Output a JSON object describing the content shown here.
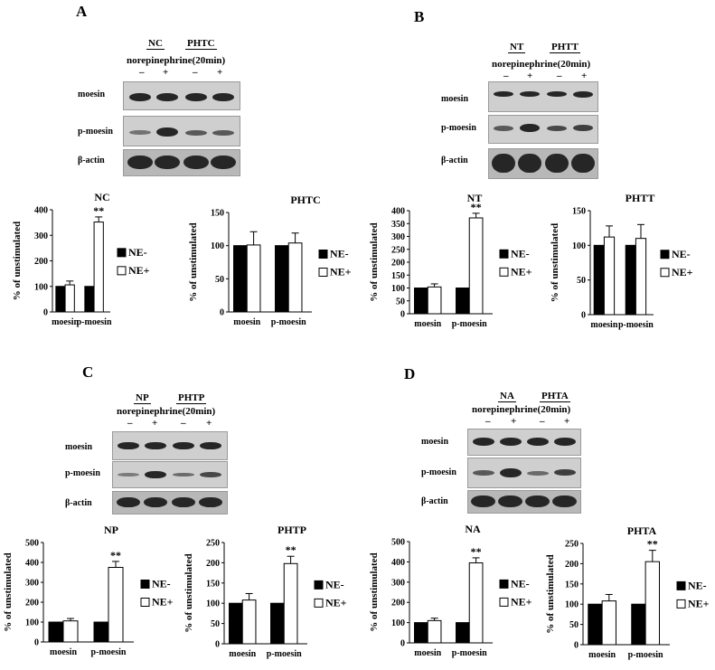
{
  "panels": {
    "A": {
      "letter": "A",
      "g1": "NC",
      "g2": "PHTC",
      "treatment": "norepinephrine(20min)",
      "signs": [
        "–",
        "+",
        "–",
        "+"
      ],
      "rows": [
        "moesin",
        "p-moesin",
        "β-actin"
      ]
    },
    "B": {
      "letter": "B",
      "g1": "NT",
      "g2": "PHTT",
      "treatment": "norepinephrine(20min)",
      "signs": [
        "–",
        "+",
        "–",
        "+"
      ],
      "rows": [
        "moesin",
        "p-moesin",
        "β-actin"
      ]
    },
    "C": {
      "letter": "C",
      "g1": "NP",
      "g2": "PHTP",
      "treatment": "norepinephrine(20min)",
      "signs": [
        "–",
        "+",
        "–",
        "+"
      ],
      "rows": [
        "moesin",
        "p-moesin",
        "β-actin"
      ]
    },
    "D": {
      "letter": "D",
      "g1": "NA",
      "g2": "PHTA",
      "treatment": "norepinephrine(20min)",
      "signs": [
        "–",
        "+",
        "–",
        "+"
      ],
      "rows": [
        "moesin",
        "p-moesin",
        "β-actin"
      ]
    }
  },
  "chart_data": [
    {
      "type": "bar",
      "title": "NC",
      "ylabel": "% of unstimulated",
      "ylim": [
        0,
        400
      ],
      "yticks": [
        0,
        100,
        200,
        300,
        400
      ],
      "categories": [
        "moesin",
        "p-moesin"
      ],
      "series": [
        {
          "name": "NE-",
          "color": "#000000",
          "values": [
            100,
            100
          ],
          "errors": [
            0,
            0
          ]
        },
        {
          "name": "NE+",
          "color": "#ffffff",
          "values": [
            106,
            352
          ],
          "errors": [
            15,
            20
          ]
        }
      ],
      "annotations": [
        "",
        "**"
      ],
      "legend": "right"
    },
    {
      "type": "bar",
      "title": "PHTC",
      "ylabel": "% of unstimulated",
      "ylim": [
        0,
        150
      ],
      "yticks": [
        0,
        50,
        100,
        150
      ],
      "categories": [
        "moesin",
        "p-moesin"
      ],
      "series": [
        {
          "name": "NE-",
          "color": "#000000",
          "values": [
            100,
            100
          ],
          "errors": [
            0,
            0
          ]
        },
        {
          "name": "NE+",
          "color": "#ffffff",
          "values": [
            101,
            104
          ],
          "errors": [
            20,
            15
          ]
        }
      ],
      "annotations": [
        "",
        ""
      ],
      "legend": "right"
    },
    {
      "type": "bar",
      "title": "NT",
      "ylabel": "% of unstimulated",
      "ylim": [
        0,
        400
      ],
      "yticks": [
        0,
        50,
        100,
        150,
        200,
        250,
        300,
        350,
        400
      ],
      "categories": [
        "moesin",
        "p-moesin"
      ],
      "series": [
        {
          "name": "NE-",
          "color": "#000000",
          "values": [
            100,
            100
          ],
          "errors": [
            0,
            0
          ]
        },
        {
          "name": "NE+",
          "color": "#ffffff",
          "values": [
            104,
            372
          ],
          "errors": [
            12,
            18
          ]
        }
      ],
      "annotations": [
        "",
        "**"
      ],
      "legend": "right"
    },
    {
      "type": "bar",
      "title": "PHTT",
      "ylabel": "% of unstimulated",
      "ylim": [
        0,
        150
      ],
      "yticks": [
        0,
        50,
        100,
        150
      ],
      "categories": [
        "moesin",
        "p-moesin"
      ],
      "series": [
        {
          "name": "NE-",
          "color": "#000000",
          "values": [
            100,
            100
          ],
          "errors": [
            0,
            0
          ]
        },
        {
          "name": "NE+",
          "color": "#ffffff",
          "values": [
            112,
            110
          ],
          "errors": [
            16,
            20
          ]
        }
      ],
      "annotations": [
        "",
        ""
      ],
      "legend": "right"
    },
    {
      "type": "bar",
      "title": "NP",
      "ylabel": "% of unstimulated",
      "ylim": [
        0,
        500
      ],
      "yticks": [
        0,
        100,
        200,
        300,
        400,
        500
      ],
      "categories": [
        "moesin",
        "p-moesin"
      ],
      "series": [
        {
          "name": "NE-",
          "color": "#000000",
          "values": [
            100,
            100
          ],
          "errors": [
            0,
            0
          ]
        },
        {
          "name": "NE+",
          "color": "#ffffff",
          "values": [
            106,
            375
          ],
          "errors": [
            12,
            30
          ]
        }
      ],
      "annotations": [
        "",
        "**"
      ],
      "legend": "right"
    },
    {
      "type": "bar",
      "title": "PHTP",
      "ylabel": "% of unstimulated",
      "ylim": [
        0,
        250
      ],
      "yticks": [
        0,
        50,
        100,
        150,
        200,
        250
      ],
      "categories": [
        "moesin",
        "p-moesin"
      ],
      "series": [
        {
          "name": "NE-",
          "color": "#000000",
          "values": [
            100,
            100
          ],
          "errors": [
            0,
            0
          ]
        },
        {
          "name": "NE+",
          "color": "#ffffff",
          "values": [
            108,
            198
          ],
          "errors": [
            16,
            18
          ]
        }
      ],
      "annotations": [
        "",
        "**"
      ],
      "legend": "right"
    },
    {
      "type": "bar",
      "title": "NA",
      "ylabel": "% of unstimulated",
      "ylim": [
        0,
        500
      ],
      "yticks": [
        0,
        100,
        200,
        300,
        400,
        500
      ],
      "categories": [
        "moesin",
        "p-moesin"
      ],
      "series": [
        {
          "name": "NE-",
          "color": "#000000",
          "values": [
            100,
            100
          ],
          "errors": [
            0,
            0
          ]
        },
        {
          "name": "NE+",
          "color": "#ffffff",
          "values": [
            110,
            395
          ],
          "errors": [
            12,
            25
          ]
        }
      ],
      "annotations": [
        "",
        "**"
      ],
      "legend": "right"
    },
    {
      "type": "bar",
      "title": "PHTA",
      "ylabel": "% of unstimulated",
      "ylim": [
        0,
        250
      ],
      "yticks": [
        0,
        50,
        100,
        150,
        200,
        250
      ],
      "categories": [
        "moesin",
        "p-moesin"
      ],
      "series": [
        {
          "name": "NE-",
          "color": "#000000",
          "values": [
            100,
            100
          ],
          "errors": [
            0,
            0
          ]
        },
        {
          "name": "NE+",
          "color": "#ffffff",
          "values": [
            108,
            205
          ],
          "errors": [
            16,
            28
          ]
        }
      ],
      "annotations": [
        "",
        "**"
      ],
      "legend": "right"
    }
  ]
}
